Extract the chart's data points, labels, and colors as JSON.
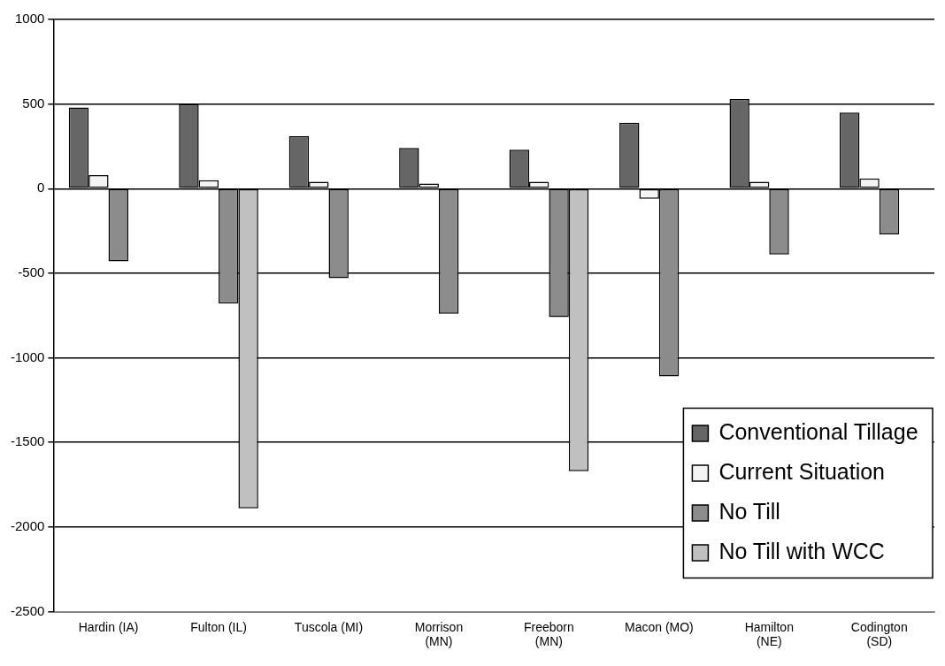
{
  "chart_data": {
    "type": "bar",
    "categories": [
      "Hardin (IA)",
      "Fulton (IL)",
      "Tuscola (MI)",
      "Morrison (MN)",
      "Freeborn (MN)",
      "Macon (MO)",
      "Hamilton (NE)",
      "Codington (SD)"
    ],
    "series": [
      {
        "name": "Conventional Tillage",
        "color": "#666666",
        "values": [
          480,
          500,
          310,
          240,
          230,
          390,
          530,
          450
        ]
      },
      {
        "name": "Current Situation",
        "color": "#f4f4f4",
        "values": [
          80,
          50,
          40,
          30,
          40,
          -60,
          40,
          60
        ]
      },
      {
        "name": "No Till",
        "color": "#8c8c8c",
        "values": [
          -430,
          -680,
          -530,
          -740,
          -760,
          -1110,
          -390,
          -270
        ]
      },
      {
        "name": "No Till with WCC",
        "color": "#c0c0c0",
        "values": [
          null,
          -1890,
          null,
          null,
          -1670,
          null,
          null,
          null
        ]
      }
    ],
    "ylim": [
      -2500,
      1000
    ],
    "yticks": [
      -2500,
      -2000,
      -1500,
      -1000,
      -500,
      0,
      500,
      1000
    ],
    "grid": "y",
    "legend": "bottom right"
  }
}
